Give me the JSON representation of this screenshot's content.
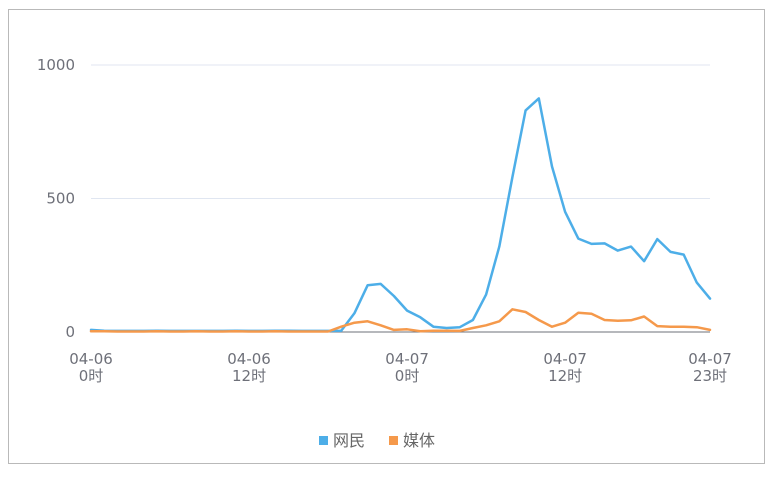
{
  "chart_data": {
    "type": "line",
    "x": [
      "04-06 0时",
      "04-06 1时",
      "04-06 2时",
      "04-06 3时",
      "04-06 4时",
      "04-06 5时",
      "04-06 6时",
      "04-06 7时",
      "04-06 8时",
      "04-06 9时",
      "04-06 10时",
      "04-06 11时",
      "04-06 12时",
      "04-06 13时",
      "04-06 14时",
      "04-06 15时",
      "04-06 16时",
      "04-06 17时",
      "04-06 18时",
      "04-06 19时",
      "04-06 20时",
      "04-06 21时",
      "04-06 22时",
      "04-06 23时",
      "04-07 0时",
      "04-07 1时",
      "04-07 2时",
      "04-07 3时",
      "04-07 4时",
      "04-07 5时",
      "04-07 6时",
      "04-07 7时",
      "04-07 8时",
      "04-07 9时",
      "04-07 10时",
      "04-07 11时",
      "04-07 12时",
      "04-07 13时",
      "04-07 14时",
      "04-07 15时",
      "04-07 16时",
      "04-07 17时",
      "04-07 18时",
      "04-07 19时",
      "04-07 20时",
      "04-07 21时",
      "04-07 22时",
      "04-07 23时"
    ],
    "x_tick_labels": [
      {
        "line1": "04-06",
        "line2": "0时"
      },
      {
        "line1": "04-06",
        "line2": "12时"
      },
      {
        "line1": "04-07",
        "line2": "0时"
      },
      {
        "line1": "04-07",
        "line2": "12时"
      },
      {
        "line1": "04-07",
        "line2": "23时"
      }
    ],
    "x_tick_indices": [
      0,
      12,
      24,
      36,
      47
    ],
    "y_ticks": [
      "0",
      "500",
      "1000"
    ],
    "ylim": [
      0,
      1000
    ],
    "grid": true,
    "legend_position": "bottom-center",
    "series": [
      {
        "name": "网民",
        "color": "#4daee8",
        "values": [
          8,
          5,
          4,
          4,
          4,
          5,
          4,
          4,
          4,
          4,
          4,
          5,
          4,
          4,
          5,
          5,
          4,
          4,
          4,
          5,
          70,
          175,
          180,
          135,
          80,
          55,
          20,
          15,
          18,
          45,
          140,
          320,
          580,
          830,
          875,
          620,
          450,
          350,
          330,
          332,
          305,
          320,
          265,
          348,
          300,
          290,
          185,
          125
        ]
      },
      {
        "name": "媒体",
        "color": "#f5994b",
        "values": [
          3,
          3,
          2,
          2,
          2,
          3,
          2,
          2,
          3,
          2,
          2,
          3,
          2,
          2,
          3,
          2,
          2,
          2,
          2,
          20,
          35,
          40,
          25,
          8,
          10,
          3,
          5,
          5,
          4,
          15,
          25,
          40,
          85,
          75,
          45,
          20,
          35,
          72,
          68,
          45,
          42,
          44,
          58,
          22,
          20,
          20,
          18,
          8
        ]
      }
    ]
  }
}
